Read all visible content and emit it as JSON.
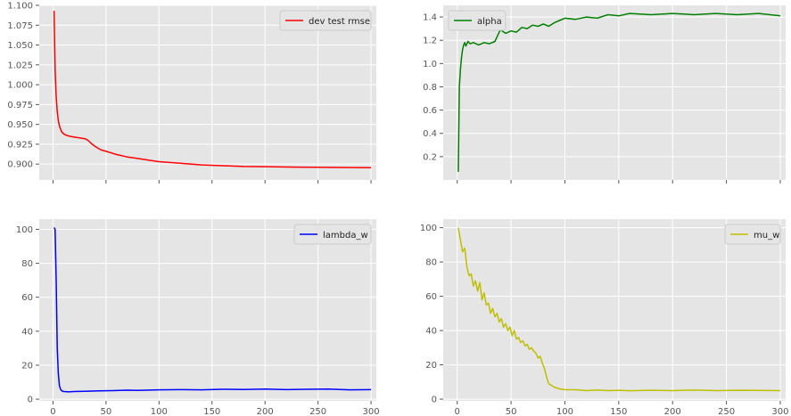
{
  "chart_data": [
    {
      "type": "line",
      "legend": "top-right",
      "grid": true,
      "xlim": [
        -13,
        305
      ],
      "ylim": [
        0.88,
        1.1
      ],
      "xticks": [
        0,
        50,
        100,
        150,
        200,
        250,
        300
      ],
      "show_xtick_labels": false,
      "yticks": [
        "0.900",
        "0.925",
        "0.950",
        "0.975",
        "1.000",
        "1.025",
        "1.050",
        "1.075",
        "1.100"
      ],
      "series": [
        {
          "name": "dev test rmse",
          "color": "#ff0000",
          "x": [
            1,
            2,
            3,
            4,
            5,
            6,
            8,
            10,
            13,
            16,
            20,
            25,
            30,
            33,
            36,
            40,
            45,
            50,
            60,
            70,
            80,
            90,
            100,
            120,
            140,
            160,
            180,
            200,
            230,
            260,
            300
          ],
          "y": [
            1.093,
            1.02,
            0.985,
            0.966,
            0.955,
            0.948,
            0.941,
            0.938,
            0.936,
            0.935,
            0.934,
            0.933,
            0.932,
            0.93,
            0.926,
            0.922,
            0.918,
            0.916,
            0.912,
            0.909,
            0.907,
            0.905,
            0.903,
            0.901,
            0.899,
            0.898,
            0.897,
            0.8967,
            0.8962,
            0.8958,
            0.8955
          ]
        }
      ]
    },
    {
      "type": "line",
      "legend": "top-left",
      "grid": true,
      "xlim": [
        -13,
        305
      ],
      "ylim": [
        0,
        1.5
      ],
      "xticks": [
        0,
        50,
        100,
        150,
        200,
        250,
        300
      ],
      "show_xtick_labels": false,
      "yticks": [
        "0.2",
        "0.4",
        "0.6",
        "0.8",
        "1.0",
        "1.2",
        "1.4"
      ],
      "series": [
        {
          "name": "alpha",
          "color": "#008000",
          "x": [
            1,
            2,
            3,
            4,
            5,
            6,
            7,
            8,
            10,
            12,
            15,
            20,
            25,
            30,
            35,
            38,
            40,
            45,
            50,
            55,
            60,
            65,
            70,
            75,
            80,
            85,
            90,
            95,
            100,
            110,
            120,
            130,
            140,
            150,
            160,
            180,
            200,
            220,
            240,
            260,
            280,
            300
          ],
          "y": [
            0.07,
            0.8,
            0.95,
            1.05,
            1.12,
            1.16,
            1.18,
            1.15,
            1.19,
            1.17,
            1.18,
            1.16,
            1.18,
            1.17,
            1.19,
            1.25,
            1.29,
            1.26,
            1.28,
            1.27,
            1.31,
            1.3,
            1.33,
            1.32,
            1.34,
            1.32,
            1.35,
            1.37,
            1.39,
            1.38,
            1.4,
            1.39,
            1.42,
            1.41,
            1.43,
            1.42,
            1.43,
            1.42,
            1.43,
            1.42,
            1.43,
            1.41
          ]
        }
      ]
    },
    {
      "type": "line",
      "legend": "top-right",
      "grid": true,
      "xlim": [
        -13,
        305
      ],
      "ylim": [
        -1,
        106
      ],
      "xticks": [
        0,
        50,
        100,
        150,
        200,
        250,
        300
      ],
      "show_xtick_labels": true,
      "xtick_labels": [
        "0",
        "50",
        "100",
        "150",
        "200",
        "250",
        "300"
      ],
      "yticks": [
        "0",
        "20",
        "40",
        "60",
        "80",
        "100"
      ],
      "series": [
        {
          "name": "lambda_w",
          "color": "#0000ff",
          "x": [
            1,
            2,
            3,
            4,
            5,
            6,
            7,
            8,
            10,
            15,
            20,
            30,
            40,
            50,
            60,
            70,
            80,
            100,
            120,
            140,
            160,
            180,
            200,
            220,
            240,
            260,
            280,
            300
          ],
          "y": [
            101,
            100,
            70,
            30,
            15,
            8,
            6,
            5,
            4.5,
            4.3,
            4.5,
            4.6,
            4.8,
            5.0,
            5.1,
            5.3,
            5.2,
            5.5,
            5.6,
            5.5,
            5.8,
            5.7,
            5.9,
            5.6,
            5.8,
            5.9,
            5.5,
            5.6
          ]
        }
      ]
    },
    {
      "type": "line",
      "legend": "top-right",
      "grid": true,
      "xlim": [
        -13,
        305
      ],
      "ylim": [
        -1,
        105
      ],
      "xticks": [
        0,
        50,
        100,
        150,
        200,
        250,
        300
      ],
      "show_xtick_labels": true,
      "xtick_labels": [
        "0",
        "50",
        "100",
        "150",
        "200",
        "250",
        "300"
      ],
      "yticks": [
        "0",
        "20",
        "40",
        "60",
        "80",
        "100"
      ],
      "series": [
        {
          "name": "mu_w",
          "color": "#bfbf00",
          "x": [
            1,
            3,
            5,
            7,
            9,
            11,
            13,
            15,
            17,
            19,
            21,
            23,
            25,
            27,
            29,
            31,
            33,
            35,
            37,
            39,
            41,
            43,
            45,
            47,
            49,
            51,
            53,
            55,
            57,
            59,
            61,
            63,
            65,
            67,
            69,
            71,
            73,
            75,
            77,
            79,
            81,
            83,
            85,
            90,
            95,
            100,
            110,
            120,
            130,
            140,
            150,
            160,
            180,
            200,
            220,
            240,
            260,
            280,
            300
          ],
          "y": [
            100,
            93,
            86,
            88,
            77,
            72,
            73,
            66,
            69,
            63,
            68,
            58,
            62,
            55,
            56,
            50,
            53,
            48,
            50,
            45,
            47,
            42,
            44,
            40,
            42,
            37,
            40,
            35,
            36,
            33,
            34,
            31,
            32,
            29,
            30,
            28,
            27,
            24,
            25,
            21,
            18,
            13,
            9,
            7,
            6,
            5.5,
            5.5,
            5.0,
            5.3,
            5.0,
            5.2,
            4.9,
            5.2,
            5.0,
            5.3,
            5.0,
            5.2,
            5.1,
            5.0
          ]
        }
      ]
    }
  ]
}
